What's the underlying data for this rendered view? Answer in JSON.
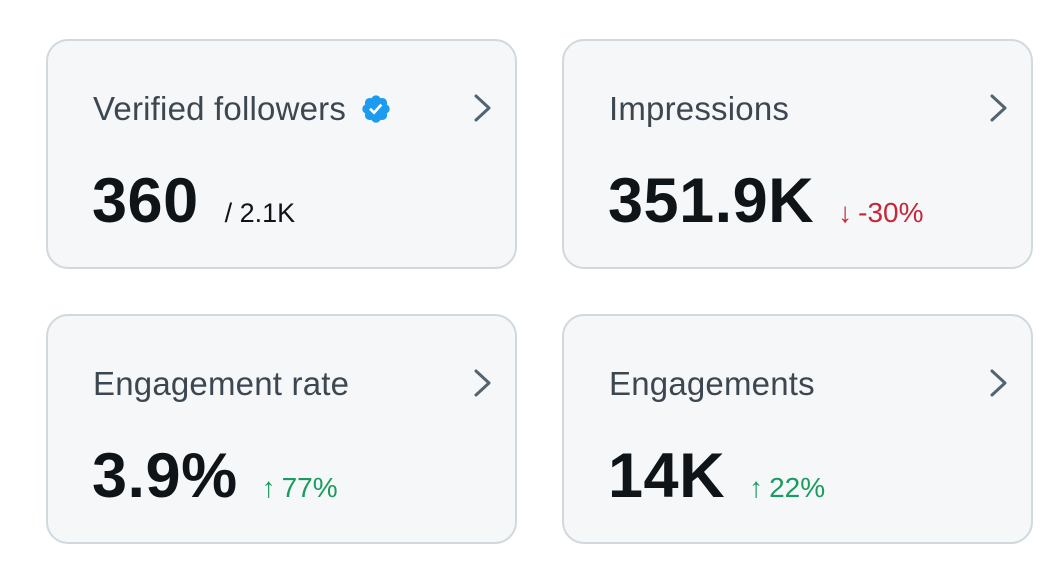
{
  "cards": [
    {
      "title": "Verified followers",
      "value": "360",
      "secondary": "/ 2.1K",
      "verified_badge": true
    },
    {
      "title": "Impressions",
      "value": "351.9K",
      "delta": {
        "arrow": "↓",
        "text": "-30%",
        "direction": "down"
      }
    },
    {
      "title": "Engagement rate",
      "value": "3.9%",
      "delta": {
        "arrow": "↑",
        "text": "77%",
        "direction": "up"
      }
    },
    {
      "title": "Engagements",
      "value": "14K",
      "delta": {
        "arrow": "↑",
        "text": "22%",
        "direction": "up"
      }
    }
  ],
  "icons": {
    "verified": "verified-badge-icon",
    "chevron": "chevron-right-icon"
  },
  "colors": {
    "card_background": "#f5f7f8",
    "card_border": "#cfd9de",
    "title_text": "#3d4751",
    "value_text": "#0f1419",
    "verified_blue": "#1d9bf0",
    "delta_down": "#c4283a",
    "delta_up": "#1a9c5e",
    "chevron": "#536471"
  }
}
